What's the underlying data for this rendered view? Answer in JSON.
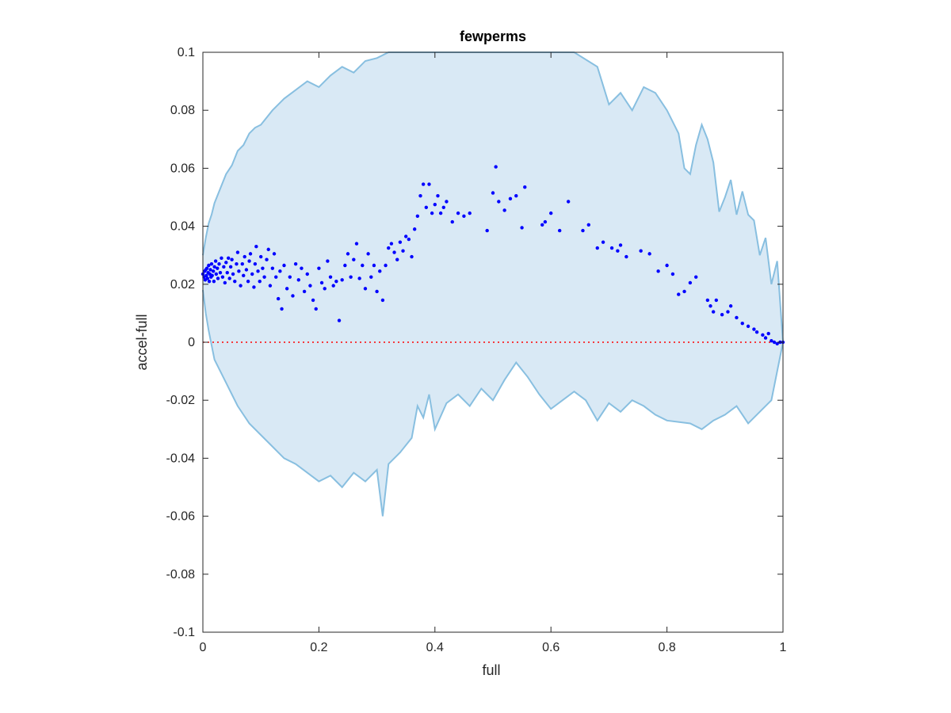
{
  "chart_data": {
    "type": "scatter",
    "title": "fewperms",
    "xlabel": "full",
    "ylabel": "accel-full",
    "xlim": [
      0,
      1
    ],
    "ylim": [
      -0.1,
      0.1
    ],
    "xticks": [
      "0",
      "0.2",
      "0.4",
      "0.6",
      "0.8",
      "1"
    ],
    "yticks": [
      "-0.1",
      "-0.08",
      "-0.06",
      "-0.04",
      "-0.02",
      "0",
      "0.02",
      "0.04",
      "0.06",
      "0.08",
      "0.1"
    ],
    "grid": false,
    "legend": "none",
    "colors": {
      "points": "#0000ff",
      "band_fill": "#d9e9f5",
      "band_edge": "#88bfe0",
      "zero_line": "#ff0000",
      "axes": "#262626"
    },
    "reference_line": {
      "y": 0,
      "style": "dotted"
    },
    "band_upper": [
      [
        0,
        0.03
      ],
      [
        0.005,
        0.036
      ],
      [
        0.01,
        0.041
      ],
      [
        0.015,
        0.044
      ],
      [
        0.02,
        0.048
      ],
      [
        0.03,
        0.053
      ],
      [
        0.04,
        0.058
      ],
      [
        0.05,
        0.061
      ],
      [
        0.06,
        0.066
      ],
      [
        0.07,
        0.068
      ],
      [
        0.08,
        0.072
      ],
      [
        0.09,
        0.074
      ],
      [
        0.1,
        0.075
      ],
      [
        0.12,
        0.08
      ],
      [
        0.14,
        0.084
      ],
      [
        0.16,
        0.087
      ],
      [
        0.18,
        0.09
      ],
      [
        0.2,
        0.088
      ],
      [
        0.22,
        0.092
      ],
      [
        0.24,
        0.095
      ],
      [
        0.26,
        0.093
      ],
      [
        0.28,
        0.097
      ],
      [
        0.3,
        0.098
      ],
      [
        0.32,
        0.1
      ],
      [
        0.34,
        0.1
      ],
      [
        0.38,
        0.1
      ],
      [
        0.42,
        0.1
      ],
      [
        0.46,
        0.1
      ],
      [
        0.5,
        0.1
      ],
      [
        0.52,
        0.1
      ],
      [
        0.55,
        0.1
      ],
      [
        0.6,
        0.1
      ],
      [
        0.64,
        0.1
      ],
      [
        0.68,
        0.095
      ],
      [
        0.7,
        0.082
      ],
      [
        0.72,
        0.086
      ],
      [
        0.74,
        0.08
      ],
      [
        0.76,
        0.088
      ],
      [
        0.78,
        0.086
      ],
      [
        0.8,
        0.08
      ],
      [
        0.82,
        0.072
      ],
      [
        0.83,
        0.06
      ],
      [
        0.84,
        0.058
      ],
      [
        0.85,
        0.068
      ],
      [
        0.86,
        0.075
      ],
      [
        0.87,
        0.07
      ],
      [
        0.88,
        0.062
      ],
      [
        0.89,
        0.045
      ],
      [
        0.9,
        0.05
      ],
      [
        0.91,
        0.056
      ],
      [
        0.92,
        0.044
      ],
      [
        0.93,
        0.052
      ],
      [
        0.94,
        0.044
      ],
      [
        0.95,
        0.042
      ],
      [
        0.96,
        0.03
      ],
      [
        0.97,
        0.036
      ],
      [
        0.98,
        0.02
      ],
      [
        0.99,
        0.028
      ],
      [
        1.0,
        0.0
      ]
    ],
    "band_lower": [
      [
        0,
        0.018
      ],
      [
        0.005,
        0.01
      ],
      [
        0.01,
        0.004
      ],
      [
        0.015,
        -0.001
      ],
      [
        0.02,
        -0.006
      ],
      [
        0.03,
        -0.01
      ],
      [
        0.04,
        -0.014
      ],
      [
        0.05,
        -0.018
      ],
      [
        0.06,
        -0.022
      ],
      [
        0.07,
        -0.025
      ],
      [
        0.08,
        -0.028
      ],
      [
        0.1,
        -0.032
      ],
      [
        0.12,
        -0.036
      ],
      [
        0.14,
        -0.04
      ],
      [
        0.16,
        -0.042
      ],
      [
        0.18,
        -0.045
      ],
      [
        0.2,
        -0.048
      ],
      [
        0.22,
        -0.046
      ],
      [
        0.24,
        -0.05
      ],
      [
        0.26,
        -0.045
      ],
      [
        0.28,
        -0.048
      ],
      [
        0.3,
        -0.044
      ],
      [
        0.31,
        -0.06
      ],
      [
        0.32,
        -0.042
      ],
      [
        0.34,
        -0.038
      ],
      [
        0.36,
        -0.033
      ],
      [
        0.37,
        -0.022
      ],
      [
        0.38,
        -0.026
      ],
      [
        0.39,
        -0.018
      ],
      [
        0.4,
        -0.03
      ],
      [
        0.42,
        -0.021
      ],
      [
        0.44,
        -0.018
      ],
      [
        0.46,
        -0.022
      ],
      [
        0.48,
        -0.016
      ],
      [
        0.5,
        -0.02
      ],
      [
        0.52,
        -0.013
      ],
      [
        0.54,
        -0.007
      ],
      [
        0.56,
        -0.012
      ],
      [
        0.58,
        -0.018
      ],
      [
        0.6,
        -0.023
      ],
      [
        0.62,
        -0.02
      ],
      [
        0.64,
        -0.017
      ],
      [
        0.66,
        -0.02
      ],
      [
        0.68,
        -0.027
      ],
      [
        0.7,
        -0.021
      ],
      [
        0.72,
        -0.024
      ],
      [
        0.74,
        -0.02
      ],
      [
        0.76,
        -0.022
      ],
      [
        0.78,
        -0.025
      ],
      [
        0.8,
        -0.027
      ],
      [
        0.84,
        -0.028
      ],
      [
        0.86,
        -0.03
      ],
      [
        0.88,
        -0.027
      ],
      [
        0.9,
        -0.025
      ],
      [
        0.92,
        -0.022
      ],
      [
        0.94,
        -0.028
      ],
      [
        0.96,
        -0.024
      ],
      [
        0.98,
        -0.02
      ],
      [
        1.0,
        0.0
      ]
    ],
    "points": [
      [
        0.0,
        0.0235
      ],
      [
        0.002,
        0.0225
      ],
      [
        0.003,
        0.0245
      ],
      [
        0.004,
        0.0215
      ],
      [
        0.005,
        0.025
      ],
      [
        0.006,
        0.023
      ],
      [
        0.007,
        0.0255
      ],
      [
        0.008,
        0.022
      ],
      [
        0.009,
        0.024
      ],
      [
        0.01,
        0.0265
      ],
      [
        0.011,
        0.021
      ],
      [
        0.012,
        0.0235
      ],
      [
        0.013,
        0.025
      ],
      [
        0.014,
        0.0225
      ],
      [
        0.015,
        0.027
      ],
      [
        0.016,
        0.023
      ],
      [
        0.018,
        0.0245
      ],
      [
        0.019,
        0.021
      ],
      [
        0.02,
        0.026
      ],
      [
        0.022,
        0.028
      ],
      [
        0.023,
        0.0235
      ],
      [
        0.025,
        0.0255
      ],
      [
        0.026,
        0.022
      ],
      [
        0.028,
        0.027
      ],
      [
        0.03,
        0.024
      ],
      [
        0.032,
        0.029
      ],
      [
        0.034,
        0.0225
      ],
      [
        0.036,
        0.026
      ],
      [
        0.038,
        0.0205
      ],
      [
        0.04,
        0.0275
      ],
      [
        0.042,
        0.024
      ],
      [
        0.044,
        0.029
      ],
      [
        0.046,
        0.022
      ],
      [
        0.048,
        0.026
      ],
      [
        0.05,
        0.0285
      ],
      [
        0.052,
        0.0235
      ],
      [
        0.055,
        0.021
      ],
      [
        0.058,
        0.027
      ],
      [
        0.06,
        0.031
      ],
      [
        0.062,
        0.0245
      ],
      [
        0.065,
        0.0195
      ],
      [
        0.068,
        0.027
      ],
      [
        0.07,
        0.023
      ],
      [
        0.072,
        0.0295
      ],
      [
        0.075,
        0.025
      ],
      [
        0.078,
        0.021
      ],
      [
        0.08,
        0.028
      ],
      [
        0.082,
        0.0305
      ],
      [
        0.085,
        0.0235
      ],
      [
        0.088,
        0.019
      ],
      [
        0.09,
        0.027
      ],
      [
        0.092,
        0.033
      ],
      [
        0.095,
        0.0245
      ],
      [
        0.098,
        0.021
      ],
      [
        0.1,
        0.0295
      ],
      [
        0.103,
        0.0255
      ],
      [
        0.106,
        0.0225
      ],
      [
        0.11,
        0.0285
      ],
      [
        0.113,
        0.032
      ],
      [
        0.116,
        0.0195
      ],
      [
        0.12,
        0.0255
      ],
      [
        0.123,
        0.0305
      ],
      [
        0.126,
        0.0225
      ],
      [
        0.13,
        0.015
      ],
      [
        0.133,
        0.0245
      ],
      [
        0.136,
        0.0115
      ],
      [
        0.14,
        0.0265
      ],
      [
        0.145,
        0.0185
      ],
      [
        0.15,
        0.0225
      ],
      [
        0.155,
        0.016
      ],
      [
        0.16,
        0.027
      ],
      [
        0.165,
        0.0215
      ],
      [
        0.17,
        0.0255
      ],
      [
        0.175,
        0.0175
      ],
      [
        0.18,
        0.0235
      ],
      [
        0.185,
        0.0195
      ],
      [
        0.19,
        0.0145
      ],
      [
        0.195,
        0.0115
      ],
      [
        0.2,
        0.0255
      ],
      [
        0.205,
        0.0205
      ],
      [
        0.21,
        0.0185
      ],
      [
        0.215,
        0.028
      ],
      [
        0.22,
        0.0225
      ],
      [
        0.225,
        0.0195
      ],
      [
        0.23,
        0.021
      ],
      [
        0.235,
        0.0075
      ],
      [
        0.24,
        0.0215
      ],
      [
        0.245,
        0.0265
      ],
      [
        0.25,
        0.0305
      ],
      [
        0.255,
        0.0225
      ],
      [
        0.26,
        0.0285
      ],
      [
        0.265,
        0.034
      ],
      [
        0.27,
        0.022
      ],
      [
        0.275,
        0.0265
      ],
      [
        0.28,
        0.0185
      ],
      [
        0.285,
        0.0305
      ],
      [
        0.29,
        0.0225
      ],
      [
        0.295,
        0.0265
      ],
      [
        0.3,
        0.0175
      ],
      [
        0.305,
        0.0245
      ],
      [
        0.31,
        0.0145
      ],
      [
        0.315,
        0.0265
      ],
      [
        0.32,
        0.0325
      ],
      [
        0.325,
        0.034
      ],
      [
        0.33,
        0.031
      ],
      [
        0.335,
        0.0285
      ],
      [
        0.34,
        0.0345
      ],
      [
        0.345,
        0.0315
      ],
      [
        0.35,
        0.0365
      ],
      [
        0.355,
        0.0355
      ],
      [
        0.36,
        0.0295
      ],
      [
        0.365,
        0.039
      ],
      [
        0.37,
        0.0435
      ],
      [
        0.375,
        0.0505
      ],
      [
        0.38,
        0.0545
      ],
      [
        0.385,
        0.0465
      ],
      [
        0.39,
        0.0545
      ],
      [
        0.395,
        0.0445
      ],
      [
        0.4,
        0.0475
      ],
      [
        0.405,
        0.0505
      ],
      [
        0.41,
        0.0445
      ],
      [
        0.415,
        0.0465
      ],
      [
        0.42,
        0.0485
      ],
      [
        0.43,
        0.0415
      ],
      [
        0.44,
        0.0445
      ],
      [
        0.45,
        0.0435
      ],
      [
        0.46,
        0.0445
      ],
      [
        0.49,
        0.0385
      ],
      [
        0.5,
        0.0515
      ],
      [
        0.505,
        0.0605
      ],
      [
        0.51,
        0.0485
      ],
      [
        0.52,
        0.0455
      ],
      [
        0.53,
        0.0495
      ],
      [
        0.54,
        0.0505
      ],
      [
        0.55,
        0.0395
      ],
      [
        0.555,
        0.0535
      ],
      [
        0.585,
        0.0405
      ],
      [
        0.59,
        0.0415
      ],
      [
        0.6,
        0.0445
      ],
      [
        0.615,
        0.0385
      ],
      [
        0.63,
        0.0485
      ],
      [
        0.655,
        0.0385
      ],
      [
        0.665,
        0.0405
      ],
      [
        0.68,
        0.0325
      ],
      [
        0.69,
        0.0345
      ],
      [
        0.705,
        0.0325
      ],
      [
        0.715,
        0.0315
      ],
      [
        0.72,
        0.0335
      ],
      [
        0.73,
        0.0295
      ],
      [
        0.755,
        0.0315
      ],
      [
        0.77,
        0.0305
      ],
      [
        0.785,
        0.0245
      ],
      [
        0.8,
        0.0265
      ],
      [
        0.81,
        0.0235
      ],
      [
        0.82,
        0.0165
      ],
      [
        0.83,
        0.0175
      ],
      [
        0.84,
        0.0205
      ],
      [
        0.85,
        0.0225
      ],
      [
        0.87,
        0.0145
      ],
      [
        0.875,
        0.0125
      ],
      [
        0.88,
        0.0105
      ],
      [
        0.885,
        0.0145
      ],
      [
        0.895,
        0.0095
      ],
      [
        0.905,
        0.0105
      ],
      [
        0.91,
        0.0125
      ],
      [
        0.92,
        0.0085
      ],
      [
        0.93,
        0.0065
      ],
      [
        0.94,
        0.0055
      ],
      [
        0.95,
        0.0045
      ],
      [
        0.955,
        0.0035
      ],
      [
        0.965,
        0.0025
      ],
      [
        0.97,
        0.0015
      ],
      [
        0.975,
        0.003
      ],
      [
        0.98,
        0.0005
      ],
      [
        0.985,
        0.0
      ],
      [
        0.99,
        -0.0005
      ],
      [
        0.995,
        0.0
      ],
      [
        1.0,
        0.0
      ]
    ]
  }
}
